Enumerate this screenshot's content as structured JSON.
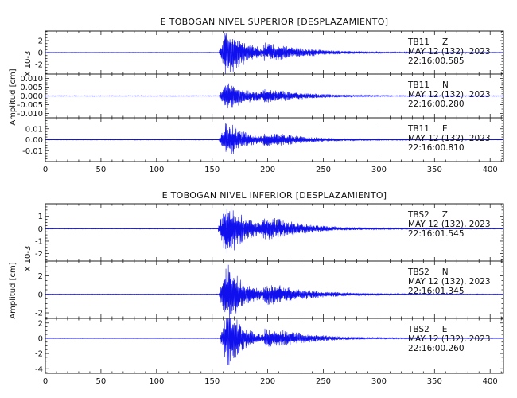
{
  "chart_data": [
    {
      "type": "line",
      "title": "E TOBOGAN NIVEL SUPERIOR [DESPLAZAMIENTO]",
      "ylabel": "Amplitud [cm]",
      "scale_label": "X 10-3",
      "xlim": [
        0,
        412
      ],
      "x_ticks": [
        "0",
        "50",
        "100",
        "150",
        "200",
        "250",
        "300",
        "350",
        "400"
      ],
      "traces": [
        {
          "station": "TB11",
          "component": "Z",
          "date": "MAY 12 (132), 2023",
          "time": "22:16:00.585",
          "ylim": [
            -3.6,
            3.6
          ],
          "y_ticks": [
            "2",
            "0",
            "-2"
          ],
          "y_tick_values": [
            2,
            0,
            -2
          ],
          "signal": {
            "onset": 156,
            "peak": 4.0,
            "noise": 0.05,
            "decay": 18
          }
        },
        {
          "station": "TB11",
          "component": "N",
          "date": "MAY 12 (132), 2023",
          "time": "22:16:00.280",
          "ylim": [
            -0.0125,
            0.0125
          ],
          "y_ticks": [
            "0.010",
            "0.005",
            "0.000",
            "-0.005",
            "-0.010"
          ],
          "y_tick_values": [
            0.01,
            0.005,
            0.0,
            -0.005,
            -0.01
          ],
          "signal": {
            "onset": 156,
            "peak": 0.0075,
            "noise": 0.0002,
            "decay": 24
          }
        },
        {
          "station": "TB11",
          "component": "E",
          "date": "MAY 12 (132), 2023",
          "time": "22:16:00.810",
          "ylim": [
            -0.02,
            0.02
          ],
          "y_ticks": [
            "0.01",
            "0.00",
            "-0.01"
          ],
          "y_tick_values": [
            0.01,
            0.0,
            -0.01
          ],
          "signal": {
            "onset": 156,
            "peak": 0.016,
            "noise": 0.0003,
            "decay": 18
          }
        }
      ]
    },
    {
      "type": "line",
      "title": "E TOBOGAN NIVEL INFERIOR [DESPLAZAMIENTO]",
      "ylabel": "Amplitud [cm]",
      "scale_label": "X 10-3",
      "xlim": [
        0,
        412
      ],
      "x_ticks": [
        "0",
        "50",
        "100",
        "150",
        "200",
        "250",
        "300",
        "350",
        "400"
      ],
      "traces": [
        {
          "station": "TBS2",
          "component": "Z",
          "date": "MAY 12 (132), 2023",
          "time": "22:16:01.545",
          "ylim": [
            -2.6,
            2.0
          ],
          "y_ticks": [
            "1",
            "0",
            "-1",
            "-2"
          ],
          "y_tick_values": [
            1,
            0,
            -1,
            -2
          ],
          "signal": {
            "onset": 155,
            "peak": 2.2,
            "noise": 0.03,
            "decay": 20
          }
        },
        {
          "station": "TBS2",
          "component": "N",
          "date": "MAY 12 (132), 2023",
          "time": "22:16:01.345",
          "ylim": [
            -2.6,
            3.6
          ],
          "y_ticks": [
            "2",
            "0",
            "-2"
          ],
          "y_tick_values": [
            2,
            0,
            -2
          ],
          "signal": {
            "onset": 156,
            "peak": 3.2,
            "noise": 0.04,
            "decay": 16
          }
        },
        {
          "station": "TBS2",
          "component": "E",
          "date": "MAY 12 (132), 2023",
          "time": "22:16:00.260",
          "ylim": [
            -4.6,
            2.6
          ],
          "y_ticks": [
            "2",
            "0",
            "-2",
            "-4"
          ],
          "y_tick_values": [
            2,
            0,
            -2,
            -4
          ],
          "signal": {
            "onset": 157,
            "peak": 3.8,
            "noise": 0.04,
            "decay": 14
          }
        }
      ]
    }
  ],
  "colors": {
    "trace": "#1010ee",
    "zero_line": "#000000",
    "axis": "#222222"
  }
}
